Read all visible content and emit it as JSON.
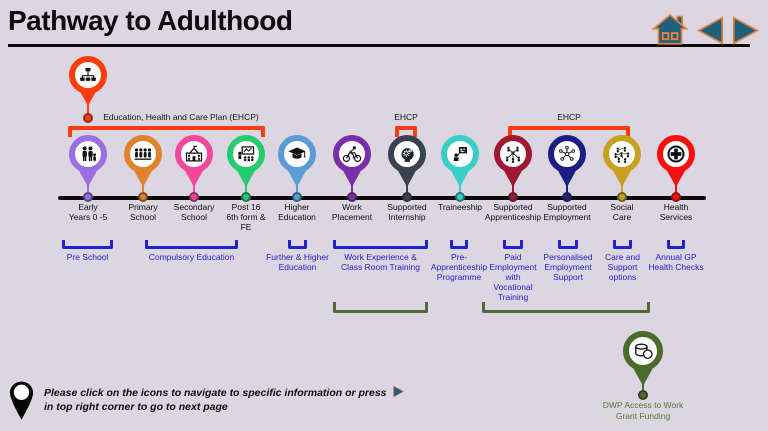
{
  "title": "Pathway to Adulthood",
  "nav": {
    "home_icon": "home-icon",
    "prev_icon": "prev-arrow-icon",
    "next_icon": "next-arrow-icon"
  },
  "colors": {
    "background": "#dcd6e2",
    "ehcp_red": "#fe3c10",
    "phase_blue": "#2222cc",
    "group_green": "#4f6b35",
    "nav_fill": "#20607f",
    "nav_outline": "#e8833c",
    "timeline": "#0a0a0a",
    "dwp_green": "#4a6b29",
    "dwp_text": "#4e7a33"
  },
  "top_pin": {
    "icon": "org-chart-icon",
    "color": "#fe3c10"
  },
  "stages": [
    {
      "label": "Early\nYears 0 -5",
      "color": "#9d6ee3",
      "icon": "family-icon"
    },
    {
      "label": "Primary\nSchool",
      "color": "#e0832f",
      "icon": "pupils-icon"
    },
    {
      "label": "Secondary\nSchool",
      "color": "#f2479c",
      "icon": "school-building-icon"
    },
    {
      "label": "Post 16\n6th form &\nFE",
      "color": "#27cc70",
      "icon": "classroom-icon"
    },
    {
      "label": "Higher\nEducation",
      "color": "#5b9cd6",
      "icon": "graduation-cap-icon"
    },
    {
      "label": "Work\nPlacement",
      "color": "#7a2fa8",
      "icon": "cyclist-icon"
    },
    {
      "label": "Supported\nInternship",
      "color": "#39424e",
      "icon": "head-gears-icon"
    },
    {
      "label": "Traineeship",
      "color": "#38cfc9",
      "icon": "presenter-icon"
    },
    {
      "label": "Supported\nApprenticeship",
      "color": "#a11931",
      "icon": "apprentice-network-icon"
    },
    {
      "label": "Supported\nEmployment",
      "color": "#1b1f85",
      "icon": "connections-icon"
    },
    {
      "label": "Social\nCare",
      "color": "#c9a122",
      "icon": "community-icon"
    },
    {
      "label": "Health\nServices",
      "color": "#fb0f0c",
      "icon": "medical-cross-icon"
    }
  ],
  "ehcp_brackets": [
    {
      "label": "Education, Health and Care Plan (EHCP)"
    },
    {
      "label": "EHCP"
    },
    {
      "label": "EHCP"
    }
  ],
  "phase_groups": [
    {
      "label": "Pre School"
    },
    {
      "label": "Compulsory Education"
    },
    {
      "label": "Further & Higher\nEducation"
    },
    {
      "label": "Work Experience &\nClass Room Training"
    },
    {
      "label": "Pre-\nApprenticeship\nProgramme"
    },
    {
      "label": "Paid\nEmployment\nwith\nVocational\nTraining"
    },
    {
      "label": "Personalised\nEmployment\nSupport"
    },
    {
      "label": "Care and\nSupport\noptions"
    },
    {
      "label": "Annual GP\nHealth Checks"
    }
  ],
  "dwp_pin": {
    "icon": "coins-icon",
    "color": "#4a6b29",
    "label": "DWP Access to Work\nGrant Funding"
  },
  "note": {
    "before_arrow": "Please click on the icons to navigate to specific information or press",
    "after_arrow": "in top right corner to go to next page"
  }
}
